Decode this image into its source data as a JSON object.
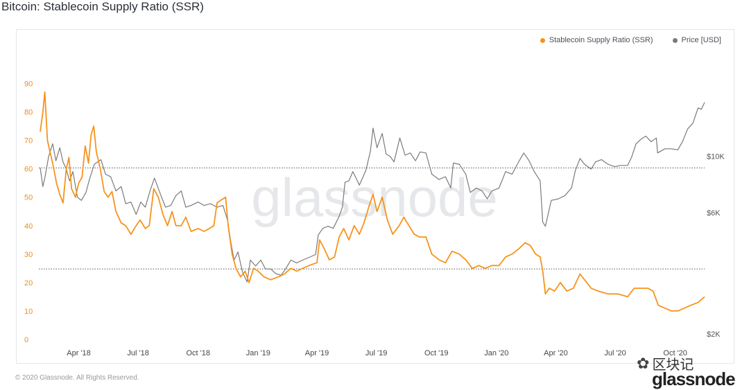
{
  "page": {
    "title": "Bitcoin: Stablecoin Supply Ratio (SSR)",
    "footer": "© 2020 Glassnode. All Rights Reserved.",
    "watermark": "glassnode",
    "wechat_label": "区块记",
    "brand": "glassnode"
  },
  "chart_data": {
    "type": "line",
    "title": "Bitcoin: Stablecoin Supply Ratio (SSR)",
    "legend": [
      {
        "name": "Stablecoin Supply Ratio (SSR)",
        "color": "#f7931a"
      },
      {
        "name": "Price [USD]",
        "color": "#7a7a7a"
      }
    ],
    "legend_position": "top-right",
    "x_tick_labels": [
      "Apr '18",
      "Jul '18",
      "Oct '18",
      "Jan '19",
      "Apr '19",
      "Jul '19",
      "Oct '19",
      "Jan '20",
      "Apr '20",
      "Jul '20",
      "Oct '20"
    ],
    "x_range": [
      "2018-02-01",
      "2020-11-15"
    ],
    "y_left": {
      "ticks": [
        0,
        10,
        20,
        30,
        40,
        50,
        60,
        70,
        80,
        90
      ],
      "range": [
        0,
        95
      ],
      "color": "#e8901c"
    },
    "y_right": {
      "scale": "log",
      "ticks": [
        {
          "label": "$2K",
          "value": 2000
        },
        {
          "label": "$6K",
          "value": 6000
        },
        {
          "label": "$10K",
          "value": 10000
        }
      ],
      "range": [
        1900,
        22000
      ]
    },
    "grid": false,
    "reference_lines": [
      {
        "axis": "right",
        "value": 9000,
        "style": "dotted"
      },
      {
        "axis": "right",
        "value": 3600,
        "style": "dotted"
      }
    ],
    "series": [
      {
        "name": "Stablecoin Supply Ratio (SSR)",
        "axis": "left",
        "color": "#f7931a",
        "points": [
          [
            "2018-02-01",
            73
          ],
          [
            "2018-02-05",
            80
          ],
          [
            "2018-02-08",
            87
          ],
          [
            "2018-02-12",
            70
          ],
          [
            "2018-02-16",
            66
          ],
          [
            "2018-02-20",
            62
          ],
          [
            "2018-02-26",
            55
          ],
          [
            "2018-03-03",
            51
          ],
          [
            "2018-03-08",
            48
          ],
          [
            "2018-03-13",
            60
          ],
          [
            "2018-03-17",
            64
          ],
          [
            "2018-03-21",
            53
          ],
          [
            "2018-03-27",
            50
          ],
          [
            "2018-04-01",
            55
          ],
          [
            "2018-04-06",
            57
          ],
          [
            "2018-04-11",
            68
          ],
          [
            "2018-04-16",
            62
          ],
          [
            "2018-04-20",
            72
          ],
          [
            "2018-04-24",
            75
          ],
          [
            "2018-04-28",
            66
          ],
          [
            "2018-05-04",
            60
          ],
          [
            "2018-05-10",
            52
          ],
          [
            "2018-05-16",
            50
          ],
          [
            "2018-05-22",
            52
          ],
          [
            "2018-05-28",
            45
          ],
          [
            "2018-06-05",
            41
          ],
          [
            "2018-06-12",
            40
          ],
          [
            "2018-06-20",
            37
          ],
          [
            "2018-06-28",
            40
          ],
          [
            "2018-07-04",
            42
          ],
          [
            "2018-07-12",
            39
          ],
          [
            "2018-07-18",
            40
          ],
          [
            "2018-07-25",
            53
          ],
          [
            "2018-08-01",
            50
          ],
          [
            "2018-08-08",
            44
          ],
          [
            "2018-08-15",
            40
          ],
          [
            "2018-08-22",
            45
          ],
          [
            "2018-08-28",
            40
          ],
          [
            "2018-09-05",
            40
          ],
          [
            "2018-09-12",
            43
          ],
          [
            "2018-09-20",
            38
          ],
          [
            "2018-10-01",
            39
          ],
          [
            "2018-10-10",
            38
          ],
          [
            "2018-10-18",
            39
          ],
          [
            "2018-10-25",
            40
          ],
          [
            "2018-10-30",
            48
          ],
          [
            "2018-11-05",
            49
          ],
          [
            "2018-11-12",
            50
          ],
          [
            "2018-11-16",
            40
          ],
          [
            "2018-11-22",
            30
          ],
          [
            "2018-11-28",
            25
          ],
          [
            "2018-12-05",
            22
          ],
          [
            "2018-12-12",
            24
          ],
          [
            "2018-12-18",
            20
          ],
          [
            "2018-12-25",
            25
          ],
          [
            "2019-01-01",
            24
          ],
          [
            "2019-01-10",
            22
          ],
          [
            "2019-01-20",
            21
          ],
          [
            "2019-02-01",
            22
          ],
          [
            "2019-02-10",
            23
          ],
          [
            "2019-02-20",
            25
          ],
          [
            "2019-03-01",
            24
          ],
          [
            "2019-03-10",
            25
          ],
          [
            "2019-03-20",
            26
          ],
          [
            "2019-04-01",
            27
          ],
          [
            "2019-04-05",
            35
          ],
          [
            "2019-04-12",
            32
          ],
          [
            "2019-04-20",
            28
          ],
          [
            "2019-04-28",
            29
          ],
          [
            "2019-05-05",
            36
          ],
          [
            "2019-05-12",
            39
          ],
          [
            "2019-05-20",
            35
          ],
          [
            "2019-05-28",
            40
          ],
          [
            "2019-06-05",
            37
          ],
          [
            "2019-06-12",
            41
          ],
          [
            "2019-06-20",
            47
          ],
          [
            "2019-06-26",
            51
          ],
          [
            "2019-07-02",
            45
          ],
          [
            "2019-07-10",
            50
          ],
          [
            "2019-07-18",
            42
          ],
          [
            "2019-07-26",
            37
          ],
          [
            "2019-08-05",
            40
          ],
          [
            "2019-08-12",
            43
          ],
          [
            "2019-08-20",
            40
          ],
          [
            "2019-08-28",
            37
          ],
          [
            "2019-09-05",
            36
          ],
          [
            "2019-09-15",
            36
          ],
          [
            "2019-09-24",
            30
          ],
          [
            "2019-10-05",
            28
          ],
          [
            "2019-10-15",
            27
          ],
          [
            "2019-10-25",
            31
          ],
          [
            "2019-11-05",
            30
          ],
          [
            "2019-11-15",
            28
          ],
          [
            "2019-11-25",
            25
          ],
          [
            "2019-12-05",
            26
          ],
          [
            "2019-12-15",
            25
          ],
          [
            "2019-12-25",
            26
          ],
          [
            "2020-01-05",
            26
          ],
          [
            "2020-01-15",
            29
          ],
          [
            "2020-01-25",
            30
          ],
          [
            "2020-02-05",
            32
          ],
          [
            "2020-02-14",
            34
          ],
          [
            "2020-02-22",
            33
          ],
          [
            "2020-03-01",
            30
          ],
          [
            "2020-03-08",
            29
          ],
          [
            "2020-03-12",
            24
          ],
          [
            "2020-03-16",
            16
          ],
          [
            "2020-03-22",
            18
          ],
          [
            "2020-03-30",
            17
          ],
          [
            "2020-04-08",
            20
          ],
          [
            "2020-04-18",
            17
          ],
          [
            "2020-04-28",
            18
          ],
          [
            "2020-05-08",
            23
          ],
          [
            "2020-05-15",
            21
          ],
          [
            "2020-05-25",
            18
          ],
          [
            "2020-06-05",
            17
          ],
          [
            "2020-06-20",
            16
          ],
          [
            "2020-07-05",
            16
          ],
          [
            "2020-07-20",
            15
          ],
          [
            "2020-07-30",
            18
          ],
          [
            "2020-08-10",
            18
          ],
          [
            "2020-08-20",
            18
          ],
          [
            "2020-08-28",
            17
          ],
          [
            "2020-09-05",
            12
          ],
          [
            "2020-09-15",
            11
          ],
          [
            "2020-09-25",
            10
          ],
          [
            "2020-10-05",
            10
          ],
          [
            "2020-10-15",
            11
          ],
          [
            "2020-10-25",
            12
          ],
          [
            "2020-11-05",
            13
          ],
          [
            "2020-11-15",
            15
          ]
        ]
      },
      {
        "name": "Price [USD]",
        "axis": "right",
        "color": "#7a7a7a",
        "points": [
          [
            "2018-02-01",
            9000
          ],
          [
            "2018-02-05",
            7600
          ],
          [
            "2018-02-08",
            8200
          ],
          [
            "2018-02-14",
            10000
          ],
          [
            "2018-02-20",
            11200
          ],
          [
            "2018-02-25",
            9600
          ],
          [
            "2018-03-03",
            10800
          ],
          [
            "2018-03-08",
            9500
          ],
          [
            "2018-03-13",
            8900
          ],
          [
            "2018-03-18",
            8000
          ],
          [
            "2018-03-23",
            8700
          ],
          [
            "2018-03-30",
            6900
          ],
          [
            "2018-04-05",
            6700
          ],
          [
            "2018-04-12",
            7200
          ],
          [
            "2018-04-18",
            8200
          ],
          [
            "2018-04-25",
            9300
          ],
          [
            "2018-05-05",
            9700
          ],
          [
            "2018-05-12",
            8500
          ],
          [
            "2018-05-20",
            8300
          ],
          [
            "2018-05-28",
            7300
          ],
          [
            "2018-06-05",
            7600
          ],
          [
            "2018-06-12",
            6500
          ],
          [
            "2018-06-20",
            6600
          ],
          [
            "2018-06-28",
            5900
          ],
          [
            "2018-07-05",
            6600
          ],
          [
            "2018-07-12",
            6300
          ],
          [
            "2018-07-20",
            7400
          ],
          [
            "2018-07-26",
            8200
          ],
          [
            "2018-08-05",
            7000
          ],
          [
            "2018-08-12",
            6300
          ],
          [
            "2018-08-20",
            6400
          ],
          [
            "2018-08-28",
            7000
          ],
          [
            "2018-09-05",
            7300
          ],
          [
            "2018-09-12",
            6300
          ],
          [
            "2018-09-20",
            6400
          ],
          [
            "2018-10-01",
            6600
          ],
          [
            "2018-10-10",
            6400
          ],
          [
            "2018-10-20",
            6500
          ],
          [
            "2018-10-30",
            6300
          ],
          [
            "2018-11-08",
            6400
          ],
          [
            "2018-11-15",
            5600
          ],
          [
            "2018-11-20",
            4600
          ],
          [
            "2018-11-25",
            3900
          ],
          [
            "2018-12-01",
            4200
          ],
          [
            "2018-12-08",
            3500
          ],
          [
            "2018-12-15",
            3200
          ],
          [
            "2018-12-20",
            3900
          ],
          [
            "2018-12-28",
            3700
          ],
          [
            "2019-01-05",
            3900
          ],
          [
            "2019-01-12",
            3600
          ],
          [
            "2019-01-20",
            3600
          ],
          [
            "2019-01-28",
            3450
          ],
          [
            "2019-02-05",
            3400
          ],
          [
            "2019-02-12",
            3600
          ],
          [
            "2019-02-20",
            3900
          ],
          [
            "2019-03-01",
            3800
          ],
          [
            "2019-03-10",
            3900
          ],
          [
            "2019-03-20",
            4000
          ],
          [
            "2019-03-30",
            4100
          ],
          [
            "2019-04-03",
            4900
          ],
          [
            "2019-04-10",
            5200
          ],
          [
            "2019-04-18",
            5300
          ],
          [
            "2019-04-26",
            5200
          ],
          [
            "2019-05-05",
            5800
          ],
          [
            "2019-05-10",
            6300
          ],
          [
            "2019-05-14",
            7900
          ],
          [
            "2019-05-20",
            8000
          ],
          [
            "2019-05-26",
            8700
          ],
          [
            "2019-06-05",
            7700
          ],
          [
            "2019-06-15",
            8800
          ],
          [
            "2019-06-22",
            10500
          ],
          [
            "2019-06-26",
            12900
          ],
          [
            "2019-07-02",
            10800
          ],
          [
            "2019-07-10",
            12300
          ],
          [
            "2019-07-16",
            10200
          ],
          [
            "2019-07-22",
            10000
          ],
          [
            "2019-07-28",
            9500
          ],
          [
            "2019-08-06",
            11800
          ],
          [
            "2019-08-14",
            10100
          ],
          [
            "2019-08-22",
            10300
          ],
          [
            "2019-08-30",
            9600
          ],
          [
            "2019-09-06",
            10400
          ],
          [
            "2019-09-15",
            10300
          ],
          [
            "2019-09-24",
            8500
          ],
          [
            "2019-10-05",
            8100
          ],
          [
            "2019-10-15",
            8300
          ],
          [
            "2019-10-23",
            7500
          ],
          [
            "2019-10-27",
            9400
          ],
          [
            "2019-11-05",
            9300
          ],
          [
            "2019-11-15",
            8500
          ],
          [
            "2019-11-22",
            7200
          ],
          [
            "2019-12-01",
            7500
          ],
          [
            "2019-12-10",
            7300
          ],
          [
            "2019-12-18",
            6800
          ],
          [
            "2019-12-25",
            7300
          ],
          [
            "2020-01-05",
            7500
          ],
          [
            "2020-01-15",
            8700
          ],
          [
            "2020-01-25",
            8500
          ],
          [
            "2020-02-05",
            9600
          ],
          [
            "2020-02-12",
            10300
          ],
          [
            "2020-02-20",
            9600
          ],
          [
            "2020-02-28",
            8700
          ],
          [
            "2020-03-08",
            8000
          ],
          [
            "2020-03-12",
            5500
          ],
          [
            "2020-03-16",
            5300
          ],
          [
            "2020-03-25",
            6700
          ],
          [
            "2020-04-05",
            6800
          ],
          [
            "2020-04-15",
            7000
          ],
          [
            "2020-04-25",
            7500
          ],
          [
            "2020-05-01",
            8800
          ],
          [
            "2020-05-08",
            9800
          ],
          [
            "2020-05-15",
            9300
          ],
          [
            "2020-05-25",
            8900
          ],
          [
            "2020-06-01",
            9500
          ],
          [
            "2020-06-10",
            9700
          ],
          [
            "2020-06-20",
            9300
          ],
          [
            "2020-06-30",
            9100
          ],
          [
            "2020-07-10",
            9200
          ],
          [
            "2020-07-20",
            9200
          ],
          [
            "2020-07-26",
            9900
          ],
          [
            "2020-08-02",
            11200
          ],
          [
            "2020-08-10",
            11700
          ],
          [
            "2020-08-17",
            12000
          ],
          [
            "2020-08-25",
            11400
          ],
          [
            "2020-09-02",
            11800
          ],
          [
            "2020-09-04",
            10300
          ],
          [
            "2020-09-15",
            10700
          ],
          [
            "2020-09-25",
            10700
          ],
          [
            "2020-10-05",
            10600
          ],
          [
            "2020-10-12",
            11400
          ],
          [
            "2020-10-20",
            12800
          ],
          [
            "2020-10-28",
            13500
          ],
          [
            "2020-11-05",
            15500
          ],
          [
            "2020-11-10",
            15300
          ],
          [
            "2020-11-15",
            16300
          ]
        ]
      }
    ]
  }
}
